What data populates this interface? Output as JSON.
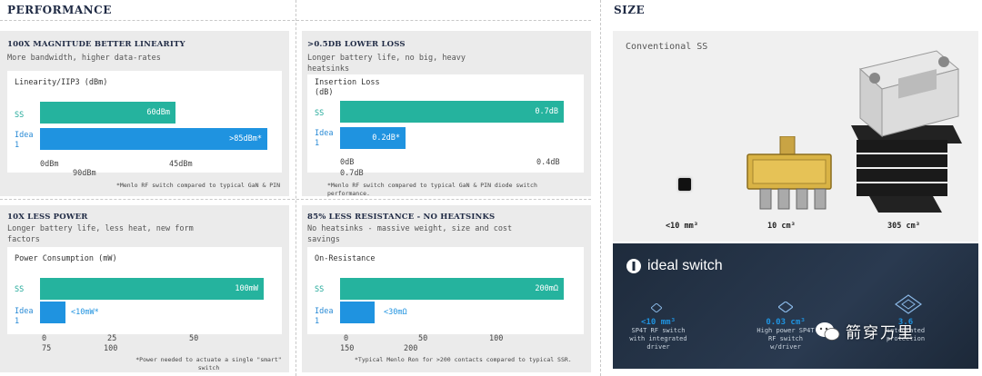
{
  "performance": {
    "title": "PERFORMANCE",
    "cards": [
      {
        "heading": "100X MAGNITUDE BETTER LINEARITY",
        "subtitle": "More bandwidth, higher data-rates",
        "chart_title": "Linearity/IIP3 (dBm)",
        "rows": [
          {
            "label": "SS",
            "value_label": "60dBm"
          },
          {
            "label": "Idea\n1",
            "value_label": ">85dBm*"
          }
        ],
        "ticks": [
          "0dBm",
          "45dBm",
          "90dBm"
        ],
        "note": "*Menlo RF switch compared to typical GaN & PIN"
      },
      {
        "heading": ">0.5DB LOWER LOSS",
        "subtitle": "Longer battery life, no big, heavy heatsinks",
        "chart_title": "Insertion Loss\n(dB)",
        "rows": [
          {
            "label": "SS",
            "value_label": "0.7dB"
          },
          {
            "label": "Idea\n1",
            "value_label": "0.2dB*"
          }
        ],
        "ticks": [
          "0dB",
          "0.4dB",
          "0.7dB"
        ],
        "note": "*Menlo RF switch compared to typical GaN & PIN diode switch performance."
      },
      {
        "heading": "10X LESS POWER",
        "subtitle": "Longer battery life, less heat, new form factors",
        "chart_title": "Power Consumption (mW)",
        "rows": [
          {
            "label": "SS",
            "value_label": "100mW"
          },
          {
            "label": "Idea\n1",
            "value_label": "<10mW*"
          }
        ],
        "ticks": [
          "0",
          "25",
          "50",
          "75",
          "100"
        ],
        "note": "*Power needed to actuate a single \"smart\" switch"
      },
      {
        "heading": "85% LESS RESISTANCE - NO HEATSINKS",
        "subtitle": "No heatsinks - massive weight, size and cost savings",
        "chart_title": "On-Resistance",
        "rows": [
          {
            "label": "SS",
            "value_label": "200mΩ"
          },
          {
            "label": "Idea\n1",
            "value_label": "<30mΩ"
          }
        ],
        "ticks": [
          "0",
          "50",
          "100",
          "150",
          "200"
        ],
        "note": "*Typical Menlo Ron for >200 contacts compared to typical SSR."
      }
    ]
  },
  "size": {
    "title": "SIZE",
    "conventional_label": "Conventional SS",
    "items": [
      {
        "label": "<10 mm³"
      },
      {
        "label": "10 cm³"
      },
      {
        "label": "305 cm³"
      }
    ],
    "brand": "ideal switch",
    "features": [
      {
        "value": "<10 mm³",
        "desc": "SP4T RF switch\nwith integrated\ndriver"
      },
      {
        "value": "0.03 cm³",
        "desc": "High power SP4T\nRF switch\nw/driver"
      },
      {
        "value": "3.6",
        "desc": "integrated\nprotection"
      }
    ],
    "watermark": "箭穿万里"
  },
  "chart_data": [
    {
      "type": "bar",
      "title": "Linearity/IIP3 (dBm)",
      "categories": [
        "SS",
        "Idea 1"
      ],
      "values": [
        60,
        85
      ],
      "xlim": [
        0,
        90
      ],
      "orientation": "horizontal"
    },
    {
      "type": "bar",
      "title": "Insertion Loss (dB)",
      "categories": [
        "SS",
        "Idea 1"
      ],
      "values": [
        0.7,
        0.2
      ],
      "xlim": [
        0,
        0.7
      ],
      "orientation": "horizontal"
    },
    {
      "type": "bar",
      "title": "Power Consumption (mW)",
      "categories": [
        "SS",
        "Idea 1"
      ],
      "values": [
        100,
        10
      ],
      "xlim": [
        0,
        100
      ],
      "orientation": "horizontal"
    },
    {
      "type": "bar",
      "title": "On-Resistance",
      "categories": [
        "SS",
        "Idea 1"
      ],
      "values": [
        200,
        30
      ],
      "xlim": [
        0,
        200
      ],
      "orientation": "horizontal"
    }
  ]
}
